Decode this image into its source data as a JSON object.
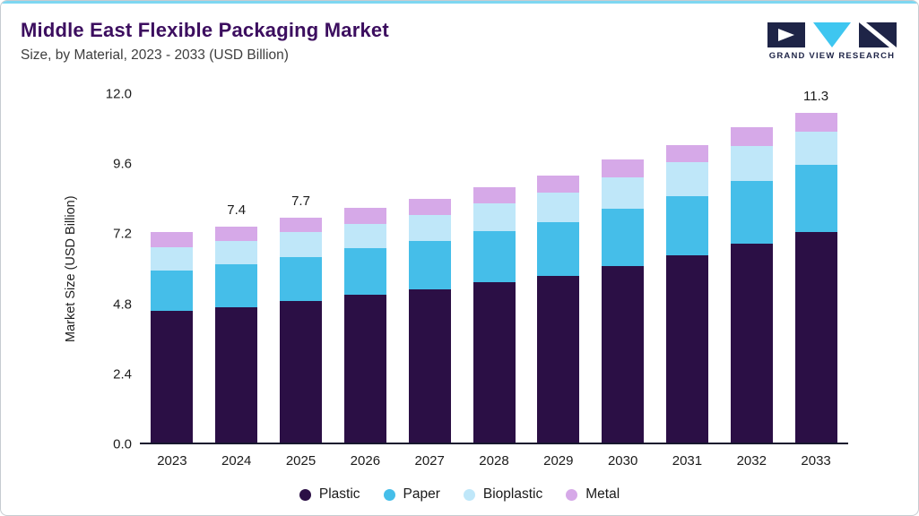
{
  "header": {
    "title": "Middle East Flexible Packaging Market",
    "subtitle": "Size, by Material, 2023 - 2033 (USD Billion)",
    "logo_text": "GRAND VIEW RESEARCH"
  },
  "colors": {
    "title": "#3c0e5f",
    "accent_line": "#7ed7f1",
    "plastic": "#2b0f45",
    "paper": "#45bee9",
    "bioplastic": "#bfe7f9",
    "metal": "#d6a9e8",
    "axis": "#17172e",
    "logo_navy": "#1e2447",
    "logo_cyan": "#3ec6f0"
  },
  "chart_data": {
    "type": "bar",
    "stacked": true,
    "title": "Middle East Flexible Packaging Market Size, by Material, 2023 - 2033 (USD Billion)",
    "categories": [
      "2023",
      "2024",
      "2025",
      "2026",
      "2027",
      "2028",
      "2029",
      "2030",
      "2031",
      "2032",
      "2033"
    ],
    "series": [
      {
        "name": "Plastic",
        "color_key": "plastic",
        "values": [
          4.5,
          4.65,
          4.85,
          5.05,
          5.25,
          5.5,
          5.7,
          6.05,
          6.4,
          6.8,
          7.2
        ]
      },
      {
        "name": "Paper",
        "color_key": "paper",
        "values": [
          1.4,
          1.45,
          1.5,
          1.6,
          1.65,
          1.75,
          1.85,
          1.95,
          2.05,
          2.15,
          2.3
        ]
      },
      {
        "name": "Bioplastic",
        "color_key": "bioplastic",
        "values": [
          0.8,
          0.8,
          0.85,
          0.85,
          0.9,
          0.95,
          1.0,
          1.1,
          1.15,
          1.2,
          1.15
        ]
      },
      {
        "name": "Metal",
        "color_key": "metal",
        "values": [
          0.5,
          0.5,
          0.5,
          0.55,
          0.55,
          0.55,
          0.6,
          0.6,
          0.6,
          0.65,
          0.65
        ]
      }
    ],
    "totals_labels": [
      {
        "category": "2024",
        "label": "7.4"
      },
      {
        "category": "2025",
        "label": "7.7"
      },
      {
        "category": "2033",
        "label": "11.3"
      }
    ],
    "ylabel": "Market Size (USD Billion)",
    "xlabel": "",
    "yticks": [
      "0.0",
      "2.4",
      "4.8",
      "7.2",
      "9.6",
      "12.0"
    ],
    "ylim": [
      0,
      12.0
    ],
    "grid": false,
    "legend": [
      "Plastic",
      "Paper",
      "Bioplastic",
      "Metal"
    ],
    "legend_position": "bottom"
  }
}
